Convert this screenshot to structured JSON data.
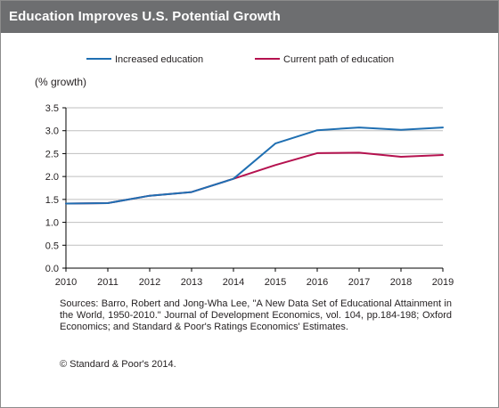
{
  "header": {
    "title": "Education Improves U.S. Potential Growth"
  },
  "chart_data": {
    "type": "line",
    "title": "Education Improves U.S. Potential Growth",
    "ylabel": "(% growth)",
    "xlabel": "",
    "x": [
      "2010",
      "2011",
      "2012",
      "2013",
      "2014",
      "2015",
      "2016",
      "2017",
      "2018",
      "2019"
    ],
    "ylim": [
      0,
      3.5
    ],
    "yticks": [
      "0.0",
      "0.5",
      "1.0",
      "1.5",
      "2.0",
      "2.5",
      "3.0",
      "3.5"
    ],
    "grid": true,
    "legend_position": "top",
    "series": [
      {
        "name": "Increased education",
        "color": "#1f6fb2",
        "values": [
          1.41,
          1.42,
          1.58,
          1.66,
          1.95,
          2.72,
          3.01,
          3.07,
          3.02,
          3.07
        ]
      },
      {
        "name": "Current path of education",
        "color": "#b5124f",
        "values": [
          1.41,
          1.42,
          1.58,
          1.66,
          1.95,
          2.25,
          2.51,
          2.52,
          2.43,
          2.47
        ]
      }
    ]
  },
  "footer": {
    "sources": "Sources: Barro, Robert and Jong-Wha Lee, \"A New Data Set of Educational Attainment in the World, 1950-2010.\" Journal of Development Economics, vol. 104, pp.184-198; Oxford Economics; and Standard & Poor's Ratings Economics' Estimates.",
    "copyright": "© Standard & Poor's 2014."
  }
}
